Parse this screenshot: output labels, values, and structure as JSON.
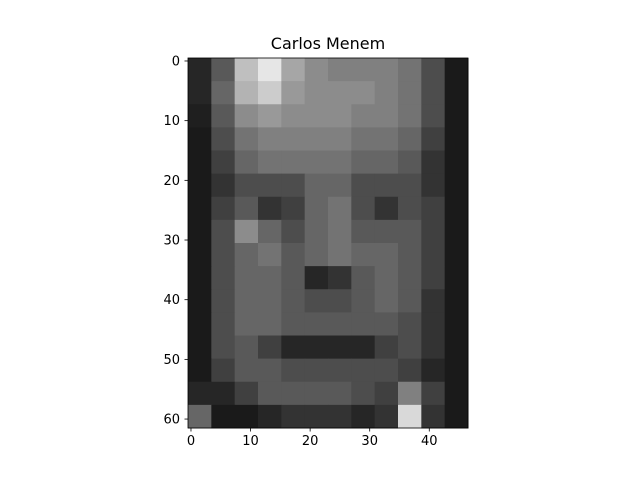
{
  "chart_data": {
    "type": "image",
    "title": "Carlos Menem",
    "cmap": "gray",
    "xlim": [
      -0.5,
      46.5
    ],
    "ylim": [
      61.5,
      -0.5
    ],
    "xticks": [
      0,
      10,
      20,
      30,
      40
    ],
    "yticks": [
      0,
      10,
      20,
      30,
      40,
      50,
      60
    ],
    "values": [
      [
        0.15,
        0.35,
        0.75,
        0.9,
        0.65,
        0.55,
        0.5,
        0.5,
        0.5,
        0.45,
        0.3,
        0.1
      ],
      [
        0.15,
        0.4,
        0.7,
        0.8,
        0.6,
        0.55,
        0.55,
        0.55,
        0.5,
        0.45,
        0.3,
        0.1
      ],
      [
        0.12,
        0.35,
        0.55,
        0.6,
        0.55,
        0.55,
        0.55,
        0.5,
        0.5,
        0.45,
        0.3,
        0.1
      ],
      [
        0.1,
        0.3,
        0.45,
        0.5,
        0.5,
        0.5,
        0.5,
        0.45,
        0.45,
        0.4,
        0.25,
        0.1
      ],
      [
        0.1,
        0.25,
        0.4,
        0.45,
        0.45,
        0.45,
        0.45,
        0.4,
        0.4,
        0.35,
        0.2,
        0.1
      ],
      [
        0.1,
        0.2,
        0.3,
        0.3,
        0.3,
        0.4,
        0.4,
        0.3,
        0.3,
        0.3,
        0.2,
        0.1
      ],
      [
        0.1,
        0.25,
        0.35,
        0.2,
        0.25,
        0.4,
        0.45,
        0.3,
        0.2,
        0.3,
        0.25,
        0.1
      ],
      [
        0.1,
        0.3,
        0.55,
        0.4,
        0.3,
        0.4,
        0.45,
        0.35,
        0.35,
        0.35,
        0.25,
        0.1
      ],
      [
        0.1,
        0.3,
        0.4,
        0.45,
        0.35,
        0.4,
        0.45,
        0.4,
        0.4,
        0.35,
        0.25,
        0.1
      ],
      [
        0.1,
        0.3,
        0.4,
        0.4,
        0.35,
        0.15,
        0.2,
        0.35,
        0.4,
        0.35,
        0.25,
        0.1
      ],
      [
        0.1,
        0.3,
        0.4,
        0.4,
        0.35,
        0.3,
        0.3,
        0.35,
        0.4,
        0.35,
        0.2,
        0.1
      ],
      [
        0.1,
        0.3,
        0.4,
        0.4,
        0.35,
        0.35,
        0.35,
        0.35,
        0.35,
        0.3,
        0.2,
        0.1
      ],
      [
        0.1,
        0.3,
        0.35,
        0.25,
        0.15,
        0.15,
        0.15,
        0.15,
        0.25,
        0.3,
        0.2,
        0.1
      ],
      [
        0.1,
        0.25,
        0.35,
        0.35,
        0.3,
        0.3,
        0.3,
        0.3,
        0.3,
        0.25,
        0.15,
        0.1
      ],
      [
        0.15,
        0.15,
        0.25,
        0.35,
        0.35,
        0.35,
        0.35,
        0.3,
        0.25,
        0.5,
        0.25,
        0.1
      ],
      [
        0.4,
        0.1,
        0.1,
        0.15,
        0.2,
        0.2,
        0.2,
        0.15,
        0.2,
        0.85,
        0.2,
        0.1
      ]
    ]
  }
}
